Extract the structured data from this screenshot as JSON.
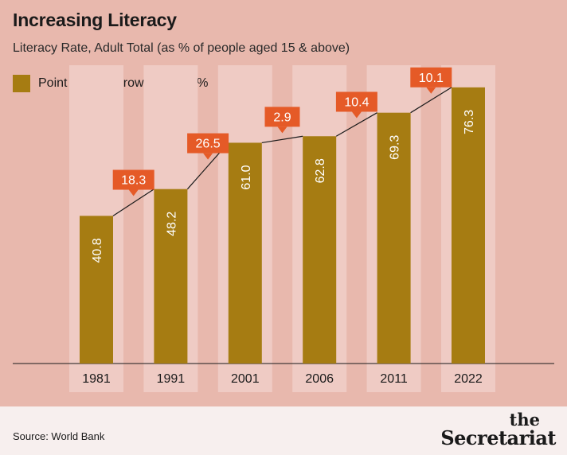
{
  "title": "Increasing Literacy",
  "subtitle": "Literacy Rate, Adult Total (as % of people aged 15 & above)",
  "legend": {
    "label": "Point to point growth rate in %",
    "color": "#a67c12"
  },
  "source": "Source: World Bank",
  "logo": {
    "line1": "the",
    "line2": "Secretariat"
  },
  "colors": {
    "background": "#e8b8ad",
    "column_band": "#efcbc4",
    "bar": "#a67c12",
    "callout": "#e55a27",
    "footer": "#f7efee"
  },
  "chart_data": {
    "type": "bar",
    "title": "Increasing Literacy",
    "subtitle": "Literacy Rate, Adult Total (as % of people aged 15 & above)",
    "categories": [
      "1981",
      "1991",
      "2001",
      "2006",
      "2011",
      "2022"
    ],
    "values": [
      40.8,
      48.2,
      61.0,
      62.8,
      69.3,
      76.3
    ],
    "value_labels": [
      "40.8",
      "48.2",
      "61.0",
      "62.8",
      "69.3",
      "76.3"
    ],
    "growth_rates": [
      "18.3",
      "26.5",
      "2.9",
      "10.4",
      "10.1"
    ],
    "growth_legend": "Point to point growth rate in %",
    "ylim": [
      0,
      80
    ],
    "grid": false
  }
}
